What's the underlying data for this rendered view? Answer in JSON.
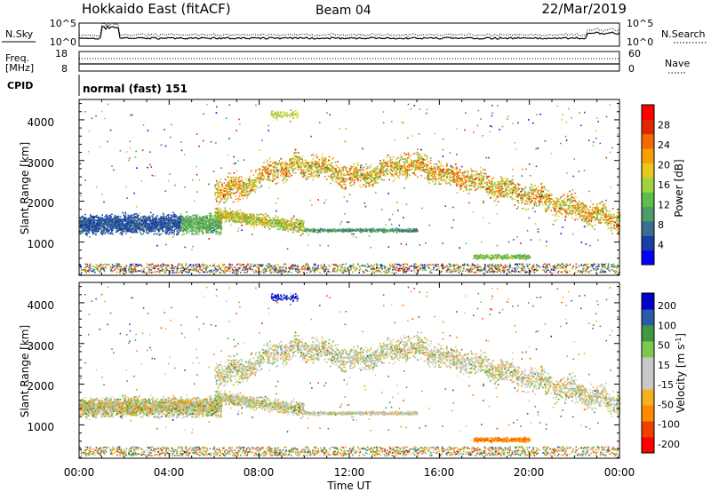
{
  "header": {
    "title": "Hokkaido East (fitACF)",
    "beam": "Beam 04",
    "date": "22/Mar/2019"
  },
  "colors": {
    "scale": [
      "#0000ff",
      "#1a3ea6",
      "#3b6e8e",
      "#4f9a6a",
      "#5bbf4a",
      "#9fd340",
      "#e6c820",
      "#f5a000",
      "#f26a00",
      "#e02800",
      "#ff0000"
    ],
    "velocity": [
      "#ff0000",
      "#f04000",
      "#ff8a00",
      "#f3b021",
      "#c8c8c8",
      "#c8c8c8",
      "#7ec850",
      "#3d9a3d",
      "#2a5aa8",
      "#0000cd"
    ]
  },
  "top_panels": {
    "nsky_label": "N.Sky",
    "nsky_ticks": [
      "10^5",
      "10^0"
    ],
    "nsearch_label": "N.Search",
    "nsearch_ticks": [
      "10^5",
      "10^0"
    ],
    "freq_label": "Freq.",
    "freq_unit": "[MHz]",
    "freq_ticks": [
      "18",
      "8"
    ],
    "nave_label": "Nave",
    "nave_ticks": [
      "60",
      "0"
    ],
    "cpid_label": "CPID",
    "cpid_text": "normal (fast) 151"
  },
  "chart_data": [
    {
      "type": "heatmap",
      "title": "",
      "xlabel": "",
      "ylabel": "Slant Range [km]",
      "xlim": [
        "00:00",
        "24:00"
      ],
      "ylim": [
        180,
        4500
      ],
      "yticks": [
        "1000",
        "2000",
        "3000",
        "4000"
      ],
      "colorbar": {
        "label": "Power [dB]",
        "range": [
          0,
          32
        ],
        "ticks": [
          "4",
          "8",
          "12",
          "16",
          "20",
          "24",
          "28"
        ]
      }
    },
    {
      "type": "heatmap",
      "title": "",
      "xlabel": "Time UT",
      "ylabel": "Slant Range [km]",
      "xlim": [
        "00:00",
        "24:00"
      ],
      "ylim": [
        180,
        4500
      ],
      "yticks": [
        "1000",
        "2000",
        "3000",
        "4000"
      ],
      "xticks": [
        "00:00",
        "04:00",
        "08:00",
        "12:00",
        "16:00",
        "20:00",
        "00:00"
      ],
      "colorbar": {
        "label": "Velocity [m s-1]",
        "ticks": [
          "200",
          "100",
          "50",
          "15",
          "-15",
          "-50",
          "-100",
          "-200"
        ]
      }
    }
  ]
}
